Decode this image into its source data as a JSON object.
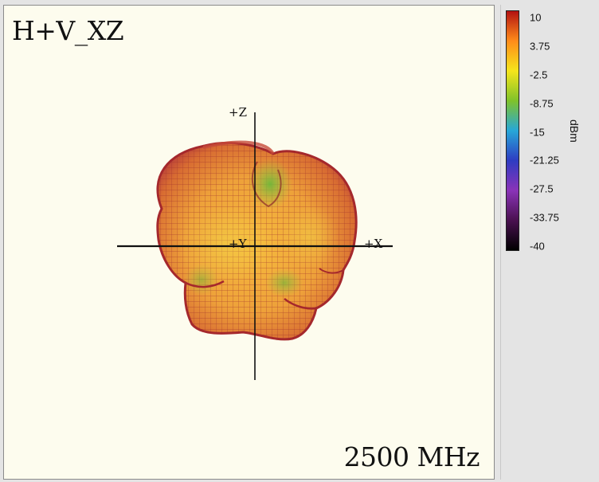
{
  "plot": {
    "title": "H+V_XZ",
    "frequency_label": "2500 MHz",
    "axes": {
      "z_label": "+Z",
      "x_label": "+X",
      "y_label": "+Y"
    }
  },
  "chart_data": {
    "type": "3d-surface-radiation-pattern",
    "title": "H+V_XZ",
    "annotation": "2500 MHz",
    "view_plane": "XZ",
    "axis_labels": [
      "+Z",
      "+X",
      "+Y"
    ],
    "colorbar": {
      "unit": "dBm",
      "range": [
        -40,
        10
      ],
      "ticks": [
        10,
        3.75,
        -2.5,
        -8.75,
        -15,
        -21.25,
        -27.5,
        -33.75,
        -40
      ],
      "tick_labels": [
        "10",
        "3.75",
        "-2.5",
        "-8.75",
        "-15",
        "-21.25",
        "-27.5",
        "-33.75",
        "-40"
      ],
      "colors": [
        "#b31212",
        "#ff8c1a",
        "#f5e51c",
        "#7fc22a",
        "#27a7d8",
        "#2e3cc2",
        "#8a33b8",
        "#4a1150",
        "#000000"
      ]
    },
    "dominant_surface_color": "#ea9a32"
  }
}
